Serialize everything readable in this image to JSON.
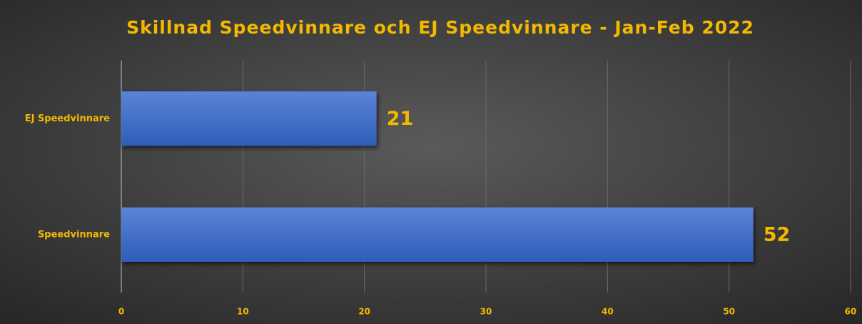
{
  "chart_data": {
    "type": "bar",
    "orientation": "horizontal",
    "title": "Skillnad Speedvinnare och EJ Speedvinnare - Jan-Feb 2022",
    "categories": [
      "EJ Speedvinnare",
      "Speedvinnare"
    ],
    "values": [
      21,
      52
    ],
    "color": "#4472c4",
    "xlim": [
      0,
      60
    ],
    "xticks": [
      0,
      10,
      20,
      30,
      40,
      50,
      60
    ],
    "grid": true
  }
}
